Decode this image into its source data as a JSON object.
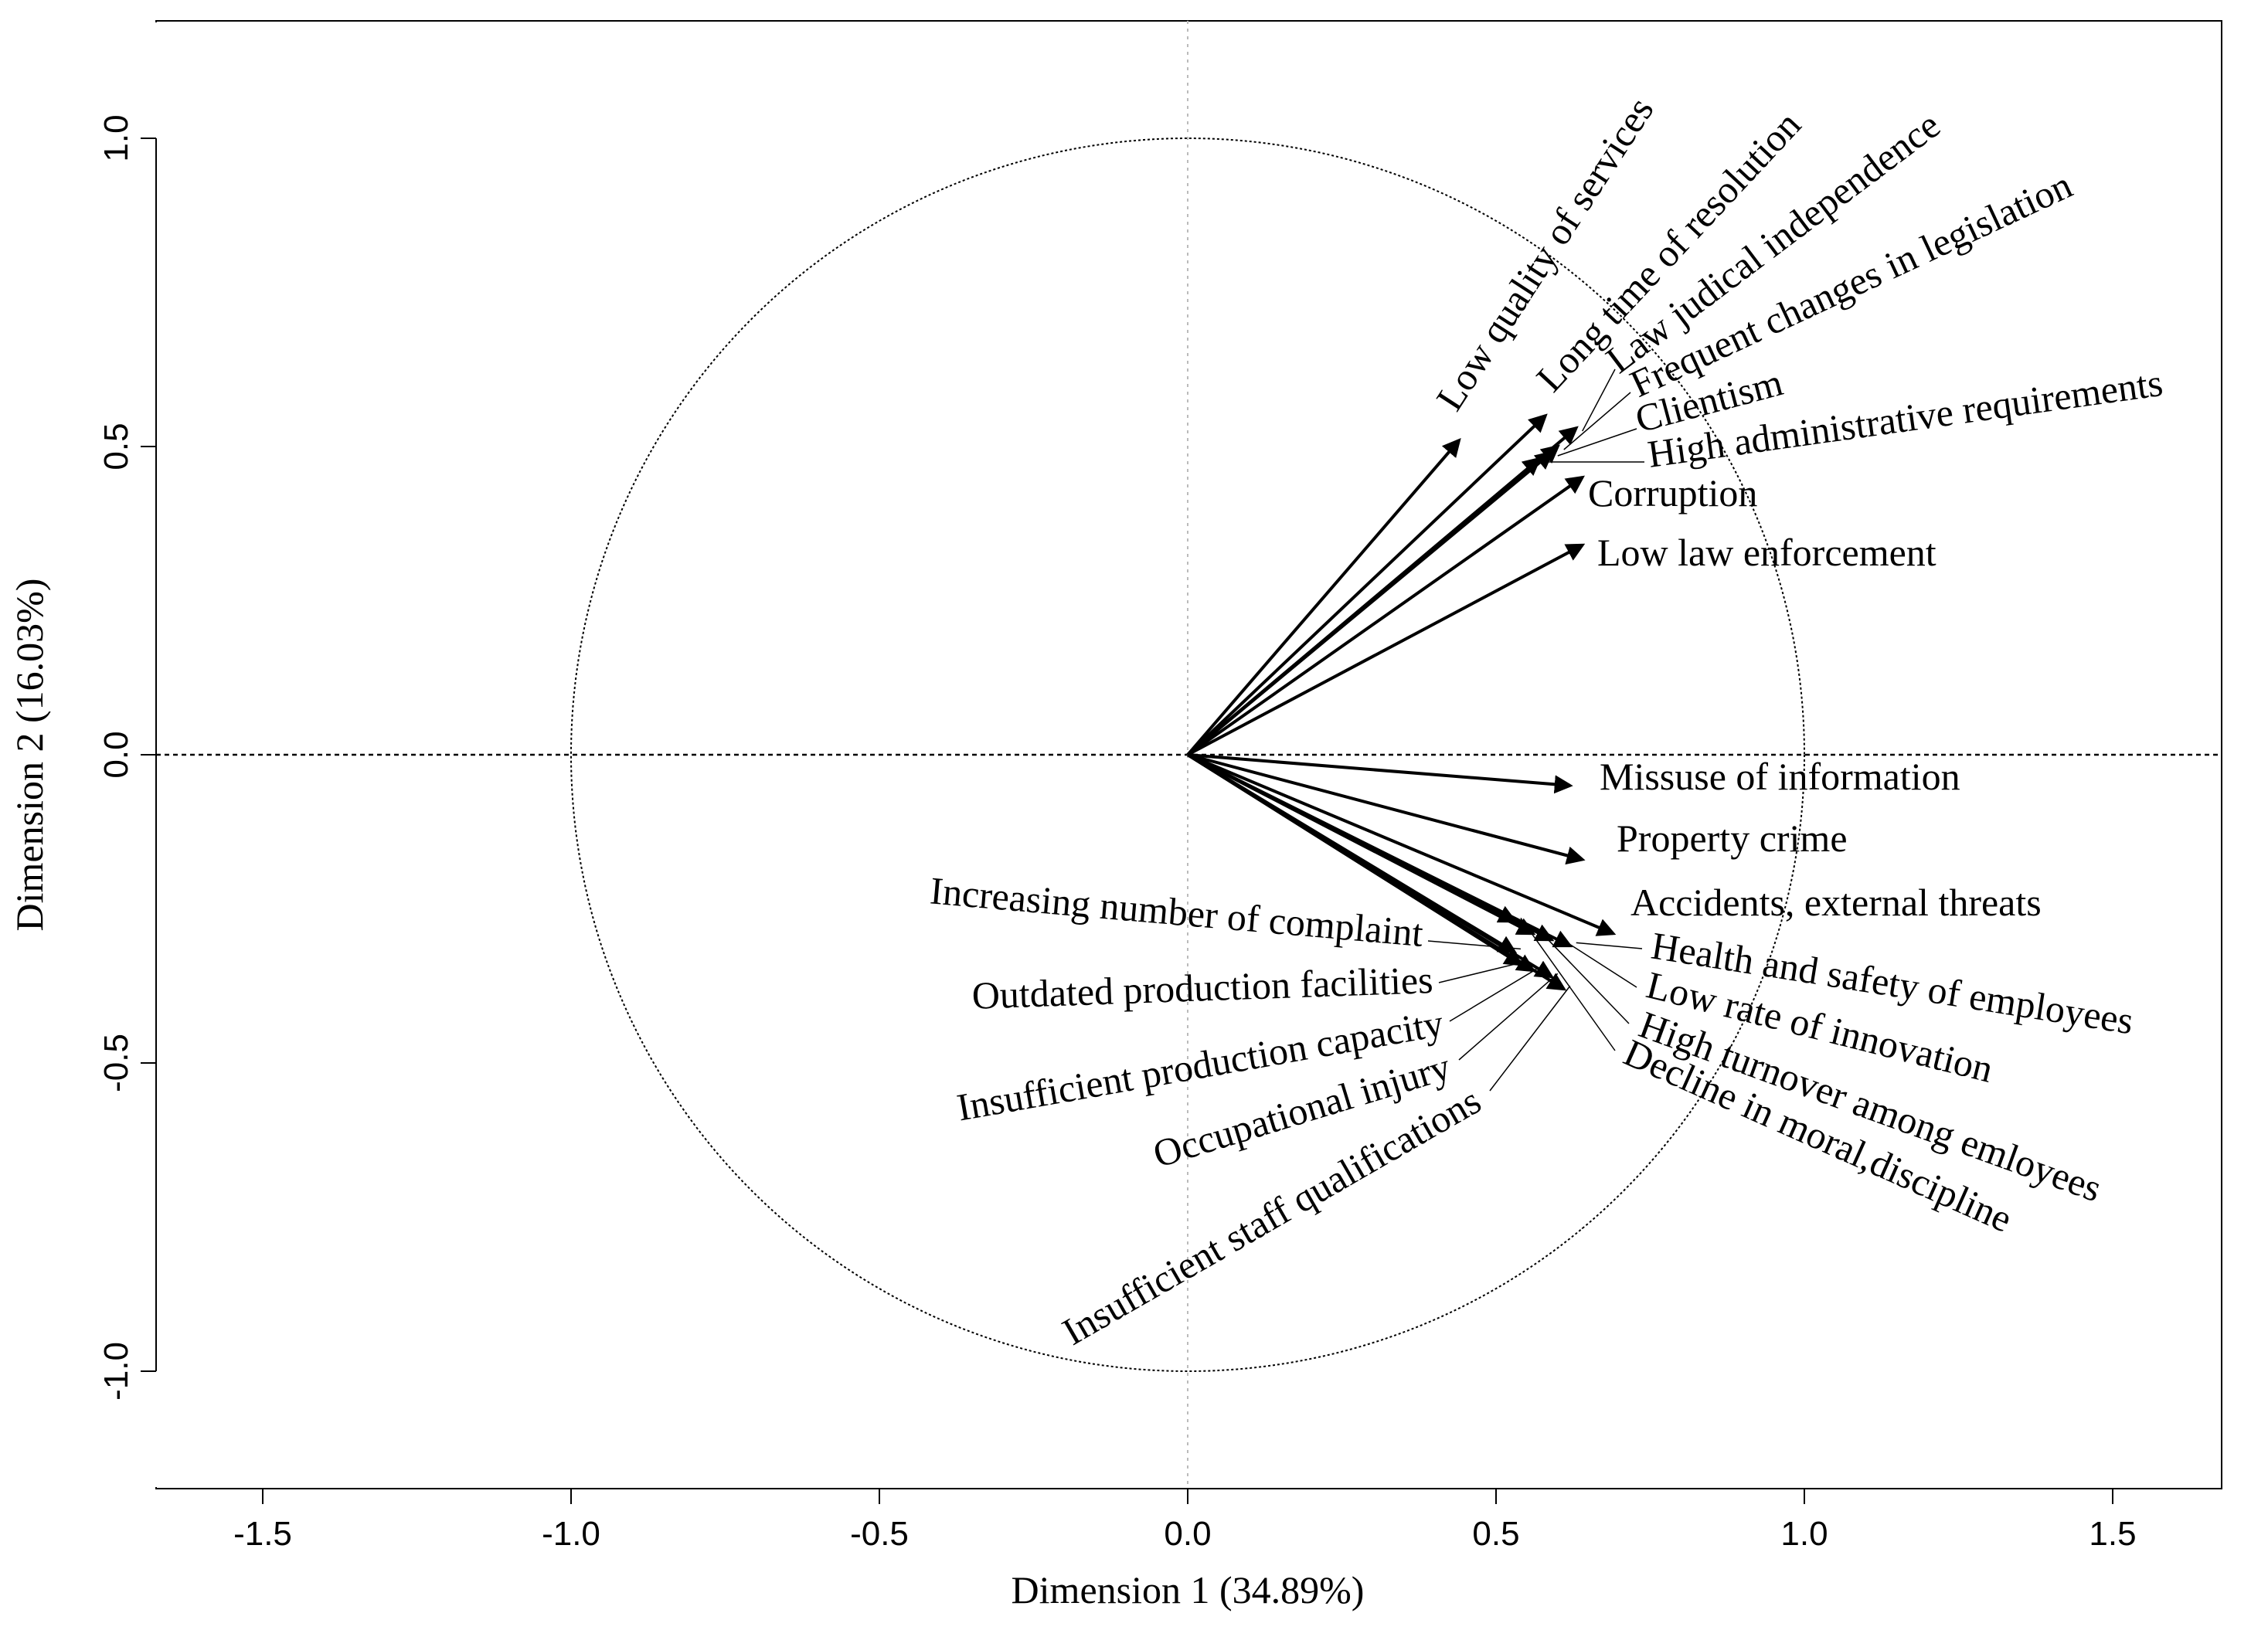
{
  "chart_data": {
    "type": "scatter",
    "subtype": "pca-variable-correlation-circle",
    "title": "",
    "xlabel": "Dimension 1 (34.89%)",
    "ylabel": "Dimension 2 (16.03%)",
    "xlim": [
      -1.67,
      1.67
    ],
    "ylim": [
      -1.19,
      1.19
    ],
    "xticks": [
      -1.5,
      -1.0,
      -0.5,
      0.0,
      0.5,
      1.0,
      1.5
    ],
    "xtick_labels": [
      "-1.5",
      "-1.0",
      "-0.5",
      "0.0",
      "0.5",
      "1.0",
      "1.5"
    ],
    "yticks": [
      -1.0,
      -0.5,
      0.0,
      0.5,
      1.0
    ],
    "ytick_labels": [
      "-1.0",
      "-0.5",
      "0.0",
      "0.5",
      "1.0"
    ],
    "unit_circle": true,
    "grid": false,
    "variables": [
      {
        "label": "Low quality of services",
        "x": 0.44,
        "y": 0.51
      },
      {
        "label": "Long time of resolution",
        "x": 0.58,
        "y": 0.55
      },
      {
        "label": "Law judical independence",
        "x": 0.63,
        "y": 0.53
      },
      {
        "label": "Frequent changes in legislation",
        "x": 0.6,
        "y": 0.5
      },
      {
        "label": "Clientism",
        "x": 0.59,
        "y": 0.49
      },
      {
        "label": "High administrative requirements",
        "x": 0.57,
        "y": 0.48
      },
      {
        "label": "Corruption",
        "x": 0.64,
        "y": 0.45
      },
      {
        "label": "Low law enforcement",
        "x": 0.64,
        "y": 0.34
      },
      {
        "label": "Missuse of information",
        "x": 0.62,
        "y": -0.05
      },
      {
        "label": "Property crime",
        "x": 0.64,
        "y": -0.17
      },
      {
        "label": "Accidents, external threats",
        "x": 0.69,
        "y": -0.29
      },
      {
        "label": "Health and safety of employees",
        "x": 0.62,
        "y": -0.31
      },
      {
        "label": "Low rate of innovation",
        "x": 0.59,
        "y": -0.3
      },
      {
        "label": "High turnover among emloyees",
        "x": 0.56,
        "y": -0.29
      },
      {
        "label": "Decline in moral,discipline",
        "x": 0.53,
        "y": -0.27
      },
      {
        "label": "Increasing number of complaint",
        "x": 0.53,
        "y": -0.32
      },
      {
        "label": "Outdated production facilities",
        "x": 0.54,
        "y": -0.34
      },
      {
        "label": "Insufficient production capacity",
        "x": 0.56,
        "y": -0.35
      },
      {
        "label": "Occupational injury",
        "x": 0.59,
        "y": -0.36
      },
      {
        "label": "Insufficient staff qualifications",
        "x": 0.61,
        "y": -0.38
      }
    ]
  }
}
